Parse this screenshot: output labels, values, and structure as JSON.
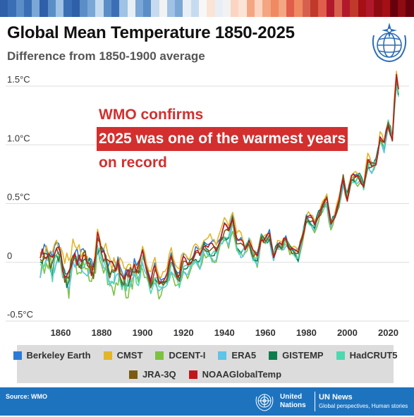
{
  "header": {
    "title": "Global Mean Temperature 1850-2025",
    "subtitle": "Difference from 1850-1900 average"
  },
  "warming_stripes": [
    "#2f5fa8",
    "#3b6fb5",
    "#5b8ec7",
    "#3b6fb5",
    "#7aa7d6",
    "#2f5fa8",
    "#5b8ec7",
    "#9fc2e5",
    "#3b6fb5",
    "#2f5fa8",
    "#5b8ec7",
    "#7aa7d6",
    "#c6dbef",
    "#5b8ec7",
    "#3b6fb5",
    "#9fc2e5",
    "#e8eef5",
    "#7aa7d6",
    "#5b8ec7",
    "#c6dbef",
    "#f2f2f2",
    "#9fc2e5",
    "#7aa7d6",
    "#e8eef5",
    "#c6dbef",
    "#f7f7f7",
    "#fbe3d6",
    "#e8eef5",
    "#f2f2f2",
    "#fcd5c2",
    "#fbe3d6",
    "#f4a582",
    "#fcd5c2",
    "#f4a582",
    "#ef8a62",
    "#f4a582",
    "#e05c4b",
    "#ef8a62",
    "#d6604d",
    "#c0392b",
    "#e05c4b",
    "#b2182b",
    "#d6604d",
    "#b2182b",
    "#c0392b",
    "#a50f15",
    "#b2182b",
    "#8e0b12",
    "#a50f15",
    "#67000d",
    "#8e0b12",
    "#67000d"
  ],
  "callout": {
    "line1": "WMO confirms",
    "line2": "2025 was one of the warmest years",
    "line3": "on record"
  },
  "logo": {
    "icon": "wmo-emblem-icon"
  },
  "footer": {
    "source": "Source: WMO",
    "un_line1": "United",
    "un_line2": "Nations",
    "news": "UN News",
    "tagline": "Global perspectives, Human stories",
    "icon": "un-emblem-icon"
  },
  "chart_data": {
    "type": "line",
    "title": "Global Mean Temperature 1850-2025",
    "subtitle": "Difference from 1850-1900 average",
    "xlabel": "",
    "ylabel": "",
    "xlim": [
      1850,
      2025
    ],
    "ylim": [
      -0.5,
      1.5
    ],
    "x_ticks": [
      1860,
      1880,
      1900,
      1920,
      1940,
      1960,
      1980,
      2000,
      2020
    ],
    "y_ticks": [
      {
        "value": -0.5,
        "label": "-0.5°C"
      },
      {
        "value": 0,
        "label": "0"
      },
      {
        "value": 0.5,
        "label": "0.5°C"
      },
      {
        "value": 1.0,
        "label": "1.0°C"
      },
      {
        "value": 1.5,
        "label": "1.5°C"
      }
    ],
    "grid": true,
    "legend_position": "bottom",
    "base_x": [
      1850,
      1852,
      1854,
      1856,
      1858,
      1860,
      1862,
      1864,
      1866,
      1868,
      1870,
      1872,
      1874,
      1876,
      1878,
      1880,
      1882,
      1884,
      1886,
      1888,
      1890,
      1892,
      1894,
      1896,
      1898,
      1900,
      1902,
      1904,
      1906,
      1908,
      1910,
      1912,
      1914,
      1916,
      1918,
      1920,
      1922,
      1924,
      1926,
      1928,
      1930,
      1932,
      1934,
      1936,
      1938,
      1940,
      1942,
      1944,
      1946,
      1948,
      1950,
      1952,
      1954,
      1956,
      1958,
      1960,
      1962,
      1964,
      1966,
      1968,
      1970,
      1972,
      1974,
      1976,
      1978,
      1980,
      1982,
      1984,
      1986,
      1988,
      1990,
      1992,
      1994,
      1996,
      1998,
      2000,
      2002,
      2004,
      2006,
      2008,
      2010,
      2012,
      2014,
      2016,
      2018,
      2020,
      2022,
      2023,
      2024,
      2025
    ],
    "base_y": [
      -0.02,
      0.02,
      0.05,
      -0.05,
      0.08,
      0.02,
      -0.12,
      -0.15,
      0.05,
      0.02,
      -0.02,
      0.0,
      -0.05,
      -0.1,
      0.15,
      0.06,
      0.0,
      -0.12,
      -0.1,
      -0.05,
      -0.15,
      -0.18,
      -0.12,
      -0.05,
      -0.1,
      0.05,
      -0.08,
      -0.2,
      -0.1,
      -0.2,
      -0.18,
      -0.15,
      0.0,
      -0.1,
      -0.15,
      -0.02,
      -0.05,
      0.0,
      0.05,
      0.02,
      0.12,
      0.1,
      0.08,
      0.08,
      0.18,
      0.25,
      0.22,
      0.35,
      0.15,
      0.12,
      0.1,
      0.18,
      0.05,
      0.02,
      0.22,
      0.18,
      0.22,
      0.05,
      0.15,
      0.12,
      0.18,
      0.12,
      0.1,
      0.05,
      0.22,
      0.38,
      0.35,
      0.3,
      0.4,
      0.48,
      0.52,
      0.32,
      0.4,
      0.5,
      0.7,
      0.55,
      0.72,
      0.7,
      0.72,
      0.65,
      0.85,
      0.8,
      0.85,
      1.05,
      0.98,
      1.18,
      1.05,
      1.34,
      1.55,
      1.44
    ],
    "series": [
      {
        "name": "Berkeley Earth",
        "color": "#2b7bd6",
        "offset": 0.03,
        "amp": 0.02,
        "seed": 1
      },
      {
        "name": "CMST",
        "color": "#e3b52b",
        "offset": 0.05,
        "amp": 0.025,
        "seed": 2
      },
      {
        "name": "DCENT-I",
        "color": "#7dc142",
        "offset": -0.03,
        "amp": 0.03,
        "seed": 3
      },
      {
        "name": "ERA5",
        "color": "#5ec4e8",
        "offset": -0.02,
        "amp": 0.015,
        "seed": 4
      },
      {
        "name": "GISTEMP",
        "color": "#0d7d4e",
        "offset": 0.0,
        "amp": 0.02,
        "seed": 5
      },
      {
        "name": "HadCRUT5",
        "color": "#4fd8b0",
        "offset": -0.01,
        "amp": 0.02,
        "seed": 6
      },
      {
        "name": "JRA-3Q",
        "color": "#7a5c12",
        "offset": 0.01,
        "amp": 0.015,
        "seed": 7
      },
      {
        "name": "NOAAGlobalTemp",
        "color": "#c0161c",
        "offset": 0.02,
        "amp": 0.02,
        "seed": 8
      }
    ]
  }
}
